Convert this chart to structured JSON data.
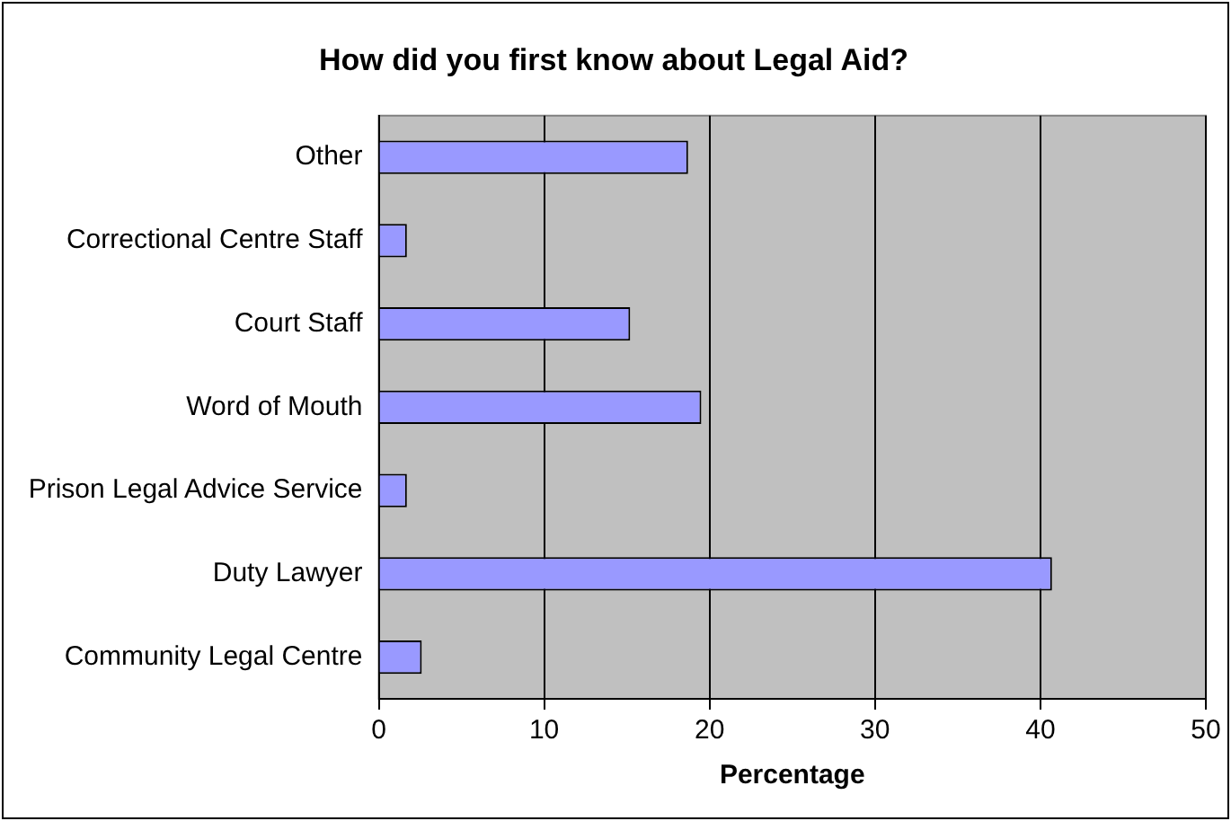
{
  "chart_data": {
    "type": "bar",
    "orientation": "horizontal",
    "title": "How did you first know about Legal Aid?",
    "xlabel": "Percentage",
    "categories": [
      "Other",
      "Correctional Centre Staff",
      "Court Staff",
      "Word of Mouth",
      "Prison Legal Advice Service",
      "Duty Lawyer",
      "Community Legal Centre"
    ],
    "values": [
      18.7,
      1.7,
      15.2,
      19.5,
      1.7,
      40.7,
      2.6
    ],
    "color": "#9999ff",
    "xlim": [
      0,
      50
    ],
    "xticks": [
      0,
      10,
      20,
      30,
      40,
      50
    ],
    "grid": "x",
    "legend": false
  }
}
